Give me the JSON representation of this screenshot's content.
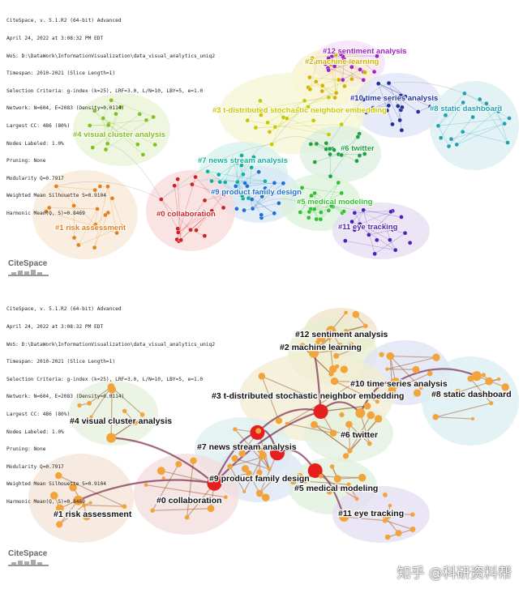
{
  "watermark": "知乎 @科研资料帮",
  "panels": [
    {
      "logo": "CiteSpace",
      "meta": [
        "CiteSpace, v. 5.1.R2 (64-bit) Advanced",
        "April 24, 2022 at 3:08:32 PM EDT",
        "WoS: D:\\DataWork\\InformationVisualization\\data_visual_analytics_uniq2",
        "Timespan: 2010-2021 (Slice Length=1)",
        "Selection Criteria: g-index (k=25), LRF=3.0, L/N=10, LBY=5, e=1.0",
        "Network: N=604, E=2083 (Density=0.0114)",
        "Largest CC: 486 (80%)",
        "Nodes Labeled: 1.0%",
        "Pruning: None",
        "Modularity Q=0.7917",
        "Weighted Mean Silhouette S=0.9104",
        "Harmonic Mean(Q, S)=0.8469"
      ],
      "clusters": [
        {
          "label": "#12 sentiment analysis",
          "color": "#a020c0"
        },
        {
          "label": "#2 machine learning",
          "color": "#d4b000"
        },
        {
          "label": "#10 time series analysis",
          "color": "#2030a0"
        },
        {
          "label": "#8 static dashboard",
          "color": "#20a0b0"
        },
        {
          "label": "#3 t-distributed stochastic neighbor embedding",
          "color": "#c8c800"
        },
        {
          "label": "#4 visual cluster analysis",
          "color": "#80c020"
        },
        {
          "label": "#6 twitter",
          "color": "#20a040"
        },
        {
          "label": "#7 news stream analysis",
          "color": "#10b0a0"
        },
        {
          "label": "#9 product family design",
          "color": "#2070d0"
        },
        {
          "label": "#0 collaboration",
          "color": "#d02020"
        },
        {
          "label": "#5 medical modeling",
          "color": "#30c030"
        },
        {
          "label": "#1 risk assessment",
          "color": "#e08020"
        },
        {
          "label": "#11 eye tracking",
          "color": "#5020b0"
        }
      ]
    },
    {
      "logo": "CiteSpace",
      "meta": [
        "CiteSpace, v. 5.1.R2 (64-bit) Advanced",
        "April 24, 2022 at 3:08:32 PM EDT",
        "WoS: D:\\DataWork\\InformationVisualization\\data_visual_analytics_uniq2",
        "Timespan: 2010-2021 (Slice Length=1)",
        "Selection Criteria: g-index (k=25), LRF=3.0, L/N=10, LBY=5, e=1.0",
        "Network: N=604, E=2083 (Density=0.0114)",
        "Largest CC: 486 (80%)",
        "Nodes Labeled: 1.0%",
        "Pruning: None",
        "Modularity Q=0.7917",
        "Weighted Mean Silhouette S=0.9104",
        "Harmonic Mean(Q, S)=0.8469"
      ],
      "clusters": [
        {
          "label": "#12 sentiment analysis"
        },
        {
          "label": "#2 machine learning"
        },
        {
          "label": "#10 time series analysis"
        },
        {
          "label": "#8 static dashboard"
        },
        {
          "label": "#3 t-distributed stochastic neighbor embedding"
        },
        {
          "label": "#4 visual cluster analysis"
        },
        {
          "label": "#6 twitter"
        },
        {
          "label": "#7 news stream analysis"
        },
        {
          "label": "#9 product family design"
        },
        {
          "label": "#0 collaboration"
        },
        {
          "label": "#5 medical modeling"
        },
        {
          "label": "#1 risk assessment"
        },
        {
          "label": "#11 eye tracking"
        }
      ]
    }
  ]
}
